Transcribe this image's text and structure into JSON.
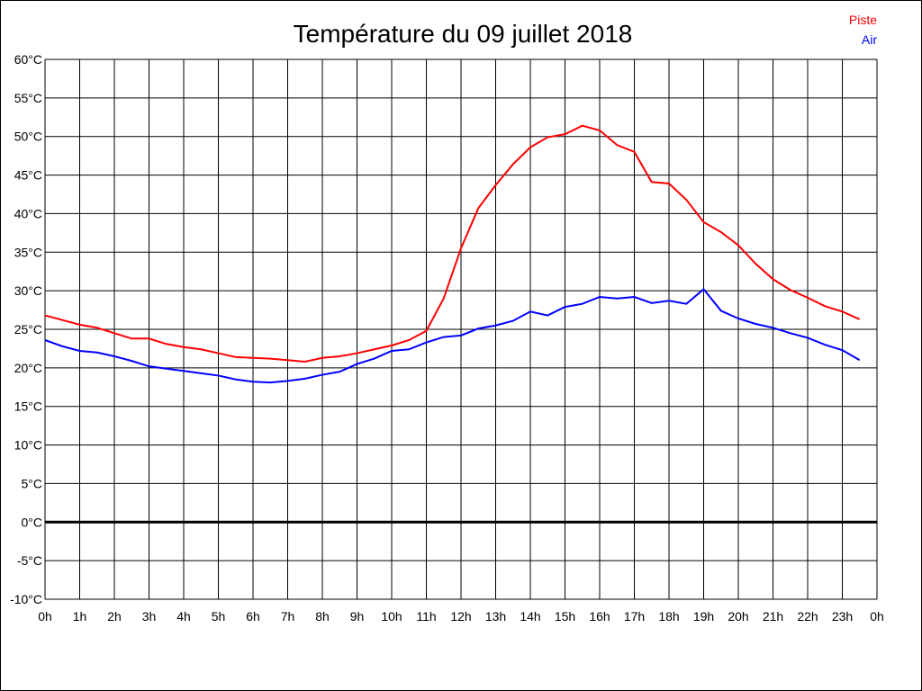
{
  "chart_data": {
    "type": "line",
    "title": "Température du 09 juillet 2018",
    "xlabel": "",
    "ylabel": "",
    "ylim": [
      -10,
      60
    ],
    "xlim": [
      0,
      24
    ],
    "grid": true,
    "legend_position": "top-right",
    "x_tick_labels": [
      "0h",
      "1h",
      "2h",
      "3h",
      "4h",
      "5h",
      "6h",
      "7h",
      "8h",
      "9h",
      "10h",
      "11h",
      "12h",
      "13h",
      "14h",
      "15h",
      "16h",
      "17h",
      "18h",
      "19h",
      "20h",
      "21h",
      "22h",
      "23h",
      "0h"
    ],
    "y_tick_labels": [
      "60°C",
      "55°C",
      "50°C",
      "45°C",
      "40°C",
      "35°C",
      "30°C",
      "25°C",
      "20°C",
      "15°C",
      "10°C",
      "5°C",
      "0°C",
      "-5°C",
      "-10°C"
    ],
    "x": [
      0,
      0.5,
      1,
      1.5,
      2,
      2.5,
      3,
      3.5,
      4,
      4.5,
      5,
      5.5,
      6,
      6.5,
      7,
      7.5,
      8,
      8.5,
      9,
      9.5,
      10,
      10.5,
      11,
      11.5,
      12,
      12.5,
      13,
      13.5,
      14,
      14.5,
      15,
      15.5,
      16,
      16.5,
      17,
      17.5,
      18,
      18.5,
      19,
      19.5,
      20,
      20.5,
      21,
      21.5,
      22,
      22.5,
      23,
      23.5
    ],
    "series": [
      {
        "name": "Piste",
        "color": "#ff0000",
        "values": [
          26.8,
          26.2,
          25.6,
          25.2,
          24.5,
          23.8,
          23.8,
          23.1,
          22.7,
          22.4,
          21.9,
          21.4,
          21.3,
          21.2,
          21.0,
          20.8,
          21.3,
          21.5,
          21.9,
          22.4,
          22.9,
          23.6,
          24.8,
          29.0,
          35.5,
          40.7,
          43.7,
          46.4,
          48.6,
          49.9,
          50.3,
          51.4,
          50.8,
          48.9,
          48.0,
          44.1,
          43.9,
          41.8,
          38.9,
          37.6,
          35.9,
          33.5,
          31.5,
          30.1,
          29.1,
          28.0,
          27.3,
          26.3
        ]
      },
      {
        "name": "Air",
        "color": "#0000ff",
        "values": [
          23.6,
          22.8,
          22.2,
          22.0,
          21.5,
          20.9,
          20.2,
          19.9,
          19.6,
          19.3,
          19.0,
          18.5,
          18.2,
          18.1,
          18.3,
          18.6,
          19.1,
          19.5,
          20.5,
          21.2,
          22.2,
          22.4,
          23.3,
          24.0,
          24.2,
          25.1,
          25.5,
          26.1,
          27.3,
          26.8,
          27.9,
          28.3,
          29.2,
          29.0,
          29.2,
          28.4,
          28.7,
          28.3,
          30.2,
          27.4,
          26.4,
          25.7,
          25.2,
          24.5,
          23.9,
          23.0,
          22.3,
          21.0
        ]
      }
    ]
  }
}
